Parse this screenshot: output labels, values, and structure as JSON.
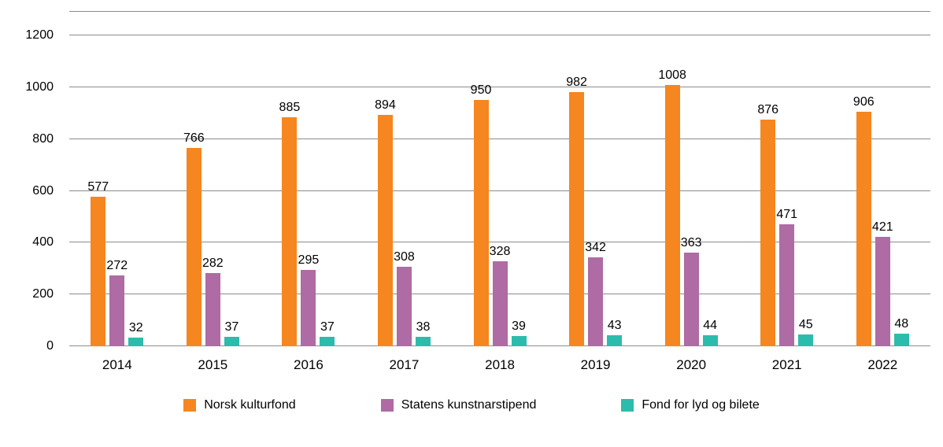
{
  "chart_data": {
    "type": "bar",
    "title": "",
    "xlabel": "",
    "ylabel": "",
    "categories": [
      "2014",
      "2015",
      "2016",
      "2017",
      "2018",
      "2019",
      "2020",
      "2021",
      "2022"
    ],
    "series": [
      {
        "name": "Norsk kulturfond",
        "color": "#F6861F",
        "values": [
          577,
          766,
          885,
          894,
          950,
          982,
          1008,
          876,
          906
        ]
      },
      {
        "name": "Statens kunstnarstipend",
        "color": "#AF6BA3",
        "values": [
          272,
          282,
          295,
          308,
          328,
          342,
          363,
          471,
          421
        ]
      },
      {
        "name": "Fond for lyd og bilete",
        "color": "#2CBCAC",
        "values": [
          32,
          37,
          37,
          38,
          39,
          43,
          44,
          45,
          48
        ]
      }
    ],
    "ylim": [
      0,
      1200
    ],
    "yticks": [
      0,
      200,
      400,
      600,
      800,
      1000,
      1200
    ],
    "grid": true,
    "value_labels": true,
    "legend_position": "bottom"
  },
  "style": {
    "grid_color": "#8C8C8C",
    "text_color": "#000000",
    "background": "#FFFFFF"
  }
}
